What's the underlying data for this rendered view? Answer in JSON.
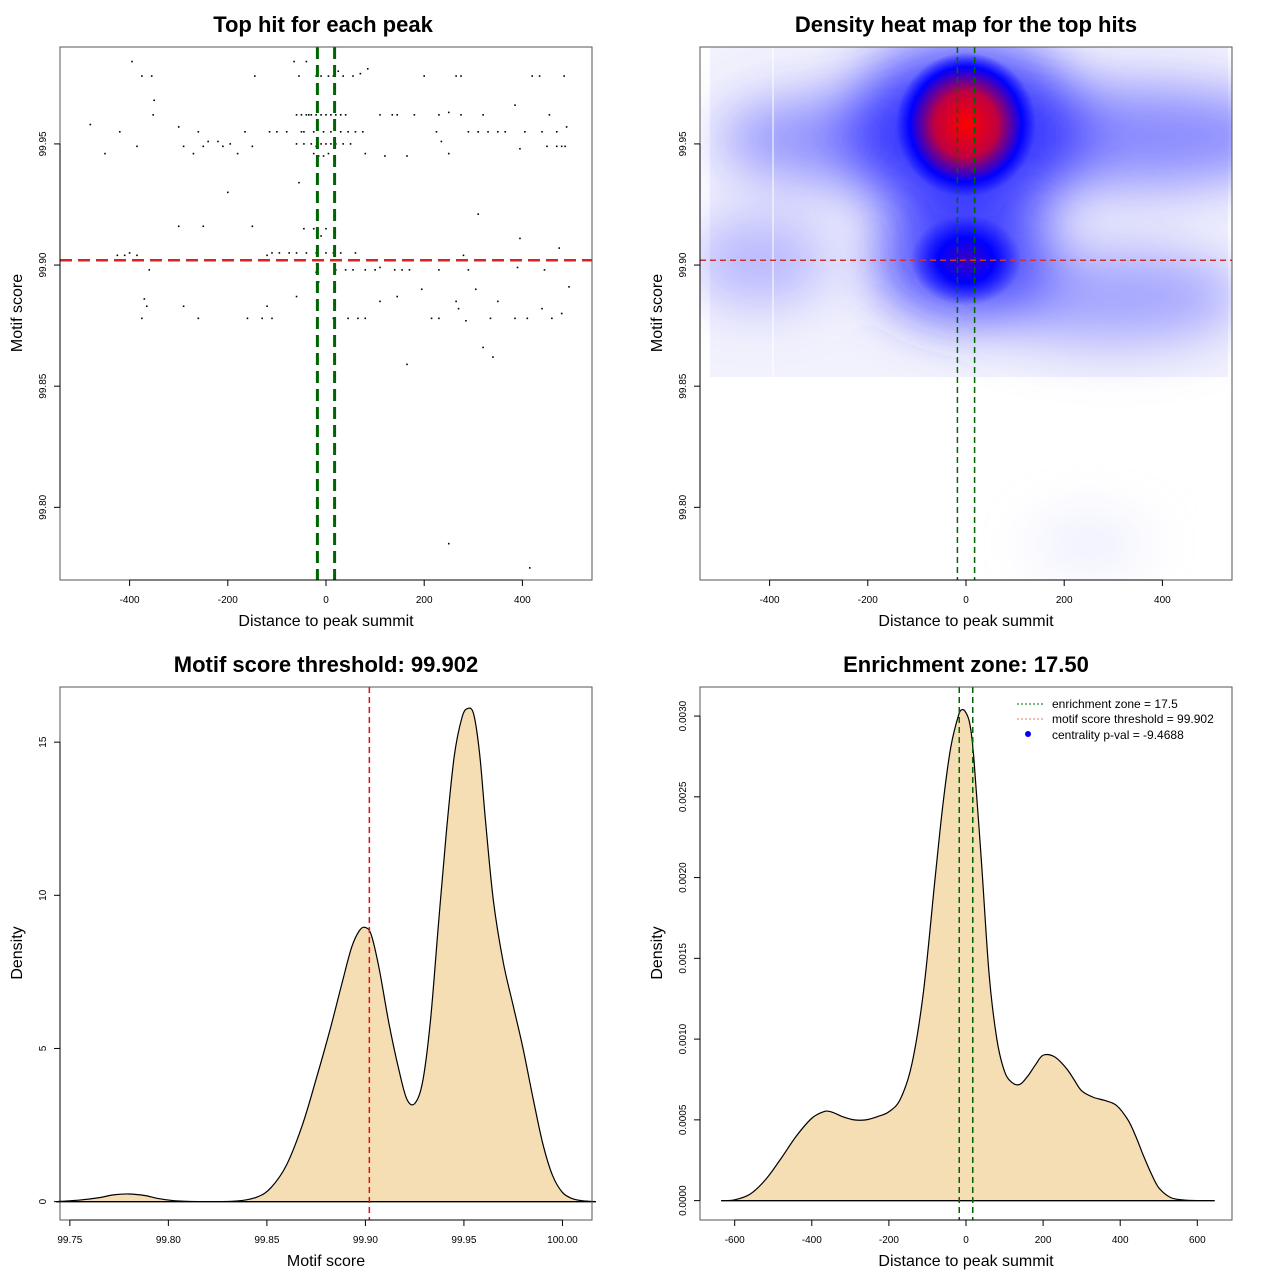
{
  "chart_data": [
    {
      "id": "scatter",
      "type": "scatter",
      "title": "Top hit for each peak",
      "xlabel": "Distance to peak summit",
      "ylabel": "Motif score",
      "xlim": [
        -500,
        500
      ],
      "ylim": [
        99.77,
        99.99
      ],
      "xticks": [
        -400,
        -200,
        0,
        200,
        400
      ],
      "xtick_labels": [
        "-400",
        "-200",
        "0",
        "200",
        "400"
      ],
      "yticks": [
        99.8,
        99.85,
        99.9,
        99.95
      ],
      "ytick_labels": [
        "99.80",
        "99.85",
        "99.90",
        "99.95"
      ],
      "vlines": [
        -17.5,
        17.5
      ],
      "hline": 99.902,
      "vline_color": "#006400",
      "hline_color": "#DD2222",
      "points": [
        [
          -480,
          99.958
        ],
        [
          -450,
          99.946
        ],
        [
          -420,
          99.955
        ],
        [
          -395,
          99.984
        ],
        [
          -385,
          99.949
        ],
        [
          -375,
          99.978
        ],
        [
          -355,
          99.978
        ],
        [
          -350,
          99.968
        ],
        [
          -352,
          99.962
        ],
        [
          -300,
          99.957
        ],
        [
          -290,
          99.949
        ],
        [
          -270,
          99.946
        ],
        [
          -260,
          99.955
        ],
        [
          -250,
          99.949
        ],
        [
          -240,
          99.951
        ],
        [
          -220,
          99.951
        ],
        [
          -210,
          99.949
        ],
        [
          -195,
          99.95
        ],
        [
          -180,
          99.946
        ],
        [
          -165,
          99.955
        ],
        [
          -150,
          99.949
        ],
        [
          -145,
          99.978
        ],
        [
          -115,
          99.955
        ],
        [
          -100,
          99.955
        ],
        [
          -80,
          99.955
        ],
        [
          -65,
          99.984
        ],
        [
          -55,
          99.978
        ],
        [
          -50,
          99.955
        ],
        [
          -40,
          99.984
        ],
        [
          -35,
          99.962
        ],
        [
          -20,
          99.978
        ],
        [
          -10,
          99.978
        ],
        [
          5,
          99.978
        ],
        [
          15,
          99.978
        ],
        [
          25,
          99.98
        ],
        [
          35,
          99.978
        ],
        [
          55,
          99.978
        ],
        [
          70,
          99.979
        ],
        [
          85,
          99.981
        ],
        [
          -60,
          99.962
        ],
        [
          -50,
          99.962
        ],
        [
          -40,
          99.962
        ],
        [
          -30,
          99.962
        ],
        [
          -20,
          99.962
        ],
        [
          -10,
          99.962
        ],
        [
          0,
          99.962
        ],
        [
          10,
          99.962
        ],
        [
          20,
          99.962
        ],
        [
          30,
          99.962
        ],
        [
          40,
          99.962
        ],
        [
          -60,
          99.95
        ],
        [
          -45,
          99.95
        ],
        [
          -30,
          99.95
        ],
        [
          -20,
          99.949
        ],
        [
          -10,
          99.95
        ],
        [
          0,
          99.95
        ],
        [
          10,
          99.95
        ],
        [
          20,
          99.95
        ],
        [
          35,
          99.95
        ],
        [
          50,
          99.95
        ],
        [
          -45,
          99.955
        ],
        [
          -25,
          99.955
        ],
        [
          -5,
          99.955
        ],
        [
          10,
          99.955
        ],
        [
          30,
          99.955
        ],
        [
          45,
          99.955
        ],
        [
          60,
          99.955
        ],
        [
          75,
          99.955
        ],
        [
          -25,
          99.946
        ],
        [
          -15,
          99.945
        ],
        [
          -5,
          99.945
        ],
        [
          5,
          99.946
        ],
        [
          80,
          99.946
        ],
        [
          120,
          99.945
        ],
        [
          165,
          99.945
        ],
        [
          200,
          99.978
        ],
        [
          225,
          99.955
        ],
        [
          235,
          99.951
        ],
        [
          250,
          99.946
        ],
        [
          265,
          99.978
        ],
        [
          275,
          99.978
        ],
        [
          290,
          99.955
        ],
        [
          310,
          99.955
        ],
        [
          330,
          99.955
        ],
        [
          350,
          99.955
        ],
        [
          365,
          99.955
        ],
        [
          395,
          99.948
        ],
        [
          405,
          99.955
        ],
        [
          420,
          99.978
        ],
        [
          435,
          99.978
        ],
        [
          440,
          99.955
        ],
        [
          455,
          99.962
        ],
        [
          470,
          99.955
        ],
        [
          485,
          99.978
        ],
        [
          490,
          99.957
        ],
        [
          110,
          99.962
        ],
        [
          135,
          99.962
        ],
        [
          145,
          99.962
        ],
        [
          180,
          99.962
        ],
        [
          230,
          99.962
        ],
        [
          250,
          99.963
        ],
        [
          275,
          99.962
        ],
        [
          310,
          99.955
        ],
        [
          320,
          99.962
        ],
        [
          385,
          99.966
        ],
        [
          450,
          99.949
        ],
        [
          470,
          99.949
        ],
        [
          480,
          99.949
        ],
        [
          487,
          99.949
        ],
        [
          -55,
          99.934
        ],
        [
          -200,
          99.93
        ],
        [
          -25,
          99.915
        ],
        [
          -10,
          99.912
        ],
        [
          0,
          99.915
        ],
        [
          -300,
          99.916
        ],
        [
          -250,
          99.916
        ],
        [
          -150,
          99.916
        ],
        [
          -45,
          99.915
        ],
        [
          -425,
          99.904
        ],
        [
          -410,
          99.904
        ],
        [
          -400,
          99.905
        ],
        [
          -385,
          99.904
        ],
        [
          -120,
          99.904
        ],
        [
          -110,
          99.905
        ],
        [
          -95,
          99.905
        ],
        [
          -75,
          99.905
        ],
        [
          -60,
          99.905
        ],
        [
          -40,
          99.905
        ],
        [
          -20,
          99.905
        ],
        [
          0,
          99.905
        ],
        [
          15,
          99.905
        ],
        [
          30,
          99.905
        ],
        [
          60,
          99.905
        ],
        [
          280,
          99.904
        ],
        [
          310,
          99.921
        ],
        [
          395,
          99.911
        ],
        [
          475,
          99.907
        ],
        [
          -360,
          99.898
        ],
        [
          -20,
          99.897
        ],
        [
          -15,
          99.893
        ],
        [
          20,
          99.898
        ],
        [
          40,
          99.898
        ],
        [
          55,
          99.898
        ],
        [
          80,
          99.898
        ],
        [
          100,
          99.898
        ],
        [
          110,
          99.899
        ],
        [
          140,
          99.898
        ],
        [
          155,
          99.898
        ],
        [
          170,
          99.898
        ],
        [
          230,
          99.898
        ],
        [
          290,
          99.898
        ],
        [
          390,
          99.899
        ],
        [
          445,
          99.898
        ],
        [
          -370,
          99.886
        ],
        [
          -365,
          99.883
        ],
        [
          -290,
          99.883
        ],
        [
          -260,
          99.878
        ],
        [
          -375,
          99.878
        ],
        [
          -160,
          99.878
        ],
        [
          -130,
          99.878
        ],
        [
          -120,
          99.883
        ],
        [
          -110,
          99.878
        ],
        [
          -60,
          99.887
        ],
        [
          15,
          99.878
        ],
        [
          45,
          99.878
        ],
        [
          65,
          99.878
        ],
        [
          80,
          99.878
        ],
        [
          110,
          99.885
        ],
        [
          145,
          99.887
        ],
        [
          195,
          99.89
        ],
        [
          215,
          99.878
        ],
        [
          230,
          99.878
        ],
        [
          265,
          99.885
        ],
        [
          270,
          99.882
        ],
        [
          285,
          99.877
        ],
        [
          305,
          99.89
        ],
        [
          335,
          99.878
        ],
        [
          350,
          99.885
        ],
        [
          385,
          99.878
        ],
        [
          410,
          99.878
        ],
        [
          440,
          99.882
        ],
        [
          460,
          99.878
        ],
        [
          480,
          99.88
        ],
        [
          495,
          99.891
        ],
        [
          320,
          99.866
        ],
        [
          340,
          99.862
        ],
        [
          165,
          99.859
        ],
        [
          250,
          99.785
        ],
        [
          415,
          99.775
        ]
      ]
    },
    {
      "id": "heatmap",
      "type": "heatmap",
      "title": "Density heat map for the top hits",
      "xlabel": "Distance to peak summit",
      "ylabel": "Motif score",
      "xlim": [
        -500,
        500
      ],
      "ylim": [
        99.77,
        99.99
      ],
      "xticks": [
        -400,
        -200,
        0,
        200,
        400
      ],
      "xtick_labels": [
        "-400",
        "-200",
        "0",
        "200",
        "400"
      ],
      "yticks": [
        99.8,
        99.85,
        99.9,
        99.95
      ],
      "ytick_labels": [
        "99.80",
        "99.85",
        "99.90",
        "99.95"
      ],
      "vlines": [
        -17.5,
        17.5
      ],
      "hline": 99.902,
      "colorscale": [
        "#FFFFFF",
        "#0000FF",
        "#FF0000"
      ],
      "density_peaks": [
        {
          "x": 0,
          "y": 99.958,
          "intensity": 1.0
        },
        {
          "x": 0,
          "y": 99.902,
          "intensity": 0.6
        },
        {
          "x": -200,
          "y": 99.952,
          "intensity": 0.35
        },
        {
          "x": 330,
          "y": 99.953,
          "intensity": 0.35
        },
        {
          "x": 300,
          "y": 99.885,
          "intensity": 0.3
        },
        {
          "x": -420,
          "y": 99.902,
          "intensity": 0.2
        },
        {
          "x": 250,
          "y": 99.785,
          "intensity": 0.05
        }
      ]
    },
    {
      "id": "score-density",
      "type": "area",
      "title": "Motif score threshold: 99.902",
      "xlabel": "Motif score",
      "ylabel": "Density",
      "xlim": [
        99.745,
        100.015
      ],
      "ylim": [
        -0.6,
        16.8
      ],
      "xticks": [
        99.75,
        99.8,
        99.85,
        99.9,
        99.95,
        100.0
      ],
      "xtick_labels": [
        "99.75",
        "99.80",
        "99.85",
        "99.90",
        "99.95",
        "100.00"
      ],
      "yticks": [
        0,
        5,
        10,
        15
      ],
      "ytick_labels": [
        "0",
        "5",
        "10",
        "15"
      ],
      "vline": 99.902,
      "fill_color": "#F5DEB3",
      "x": [
        99.743,
        99.755,
        99.765,
        99.772,
        99.78,
        99.788,
        99.795,
        99.805,
        99.82,
        99.835,
        99.845,
        99.852,
        99.86,
        99.868,
        99.875,
        99.882,
        99.888,
        99.893,
        99.897,
        99.9,
        99.903,
        99.907,
        99.912,
        99.917,
        99.921,
        99.925,
        99.929,
        99.933,
        99.937,
        99.941,
        99.945,
        99.949,
        99.952,
        99.955,
        99.958,
        99.961,
        99.965,
        99.97,
        99.975,
        99.98,
        99.985,
        99.99,
        99.995,
        100.0,
        100.005,
        100.01,
        100.017
      ],
      "y": [
        0,
        0.05,
        0.13,
        0.22,
        0.25,
        0.2,
        0.1,
        0.02,
        0,
        0.02,
        0.15,
        0.45,
        1.2,
        2.5,
        4.0,
        5.6,
        7.1,
        8.3,
        8.85,
        8.95,
        8.7,
        7.6,
        5.8,
        4.3,
        3.35,
        3.2,
        3.9,
        5.9,
        9.0,
        12.0,
        14.5,
        15.8,
        16.1,
        15.9,
        14.6,
        12.4,
        9.8,
        7.8,
        6.4,
        5.0,
        3.4,
        1.9,
        0.85,
        0.3,
        0.1,
        0.03,
        0
      ]
    },
    {
      "id": "distance-density",
      "type": "area",
      "title": "Enrichment zone: 17.50",
      "xlabel": "Distance to peak summit",
      "ylabel": "Density",
      "xlim": [
        -690,
        690
      ],
      "ylim": [
        -0.00012,
        0.00318
      ],
      "xticks": [
        -600,
        -400,
        -200,
        0,
        200,
        400,
        600
      ],
      "xtick_labels": [
        "-600",
        "-400",
        "-200",
        "0",
        "200",
        "400",
        "600"
      ],
      "yticks": [
        0.0,
        0.0005,
        0.001,
        0.0015,
        0.002,
        0.0025,
        0.003
      ],
      "ytick_labels": [
        "0.0000",
        "0.0005",
        "0.0010",
        "0.0015",
        "0.0020",
        "0.0025",
        "0.0030"
      ],
      "vlines": [
        -17.5,
        17.5
      ],
      "fill_color": "#F5DEB3",
      "x": [
        -635,
        -600,
        -560,
        -520,
        -480,
        -440,
        -400,
        -370,
        -350,
        -320,
        -290,
        -260,
        -230,
        -200,
        -170,
        -140,
        -110,
        -80,
        -60,
        -40,
        -20,
        -10,
        0,
        10,
        20,
        40,
        60,
        80,
        100,
        120,
        140,
        160,
        180,
        200,
        230,
        260,
        280,
        300,
        330,
        360,
        390,
        420,
        440,
        460,
        480,
        500,
        530,
        560,
        600,
        645
      ],
      "y": [
        0,
        5e-06,
        4e-05,
        0.00013,
        0.00026,
        0.0004,
        0.00051,
        0.00055,
        0.00055,
        0.00052,
        0.0005,
        0.0005,
        0.00052,
        0.00055,
        0.00063,
        0.00085,
        0.0013,
        0.002,
        0.00245,
        0.0028,
        0.003,
        0.00304,
        0.00302,
        0.00295,
        0.00275,
        0.0021,
        0.0014,
        0.001,
        0.0008,
        0.00073,
        0.00072,
        0.00077,
        0.00084,
        0.0009,
        0.00089,
        0.00082,
        0.00075,
        0.00068,
        0.00064,
        0.00062,
        0.00059,
        0.0005,
        0.0004,
        0.00028,
        0.00017,
        8e-05,
        2e-05,
        5e-06,
        0,
        0
      ]
    }
  ],
  "legend": {
    "items": [
      {
        "label": "enrichment zone = 17.5",
        "symbol": "dotted-line",
        "color": "#006400"
      },
      {
        "label": "motif score threshold = 99.902",
        "symbol": "dotted-line",
        "color": "#E57373"
      },
      {
        "label": "centrality p-val = -9.4688",
        "symbol": "dot",
        "color": "#0000FF"
      }
    ]
  }
}
